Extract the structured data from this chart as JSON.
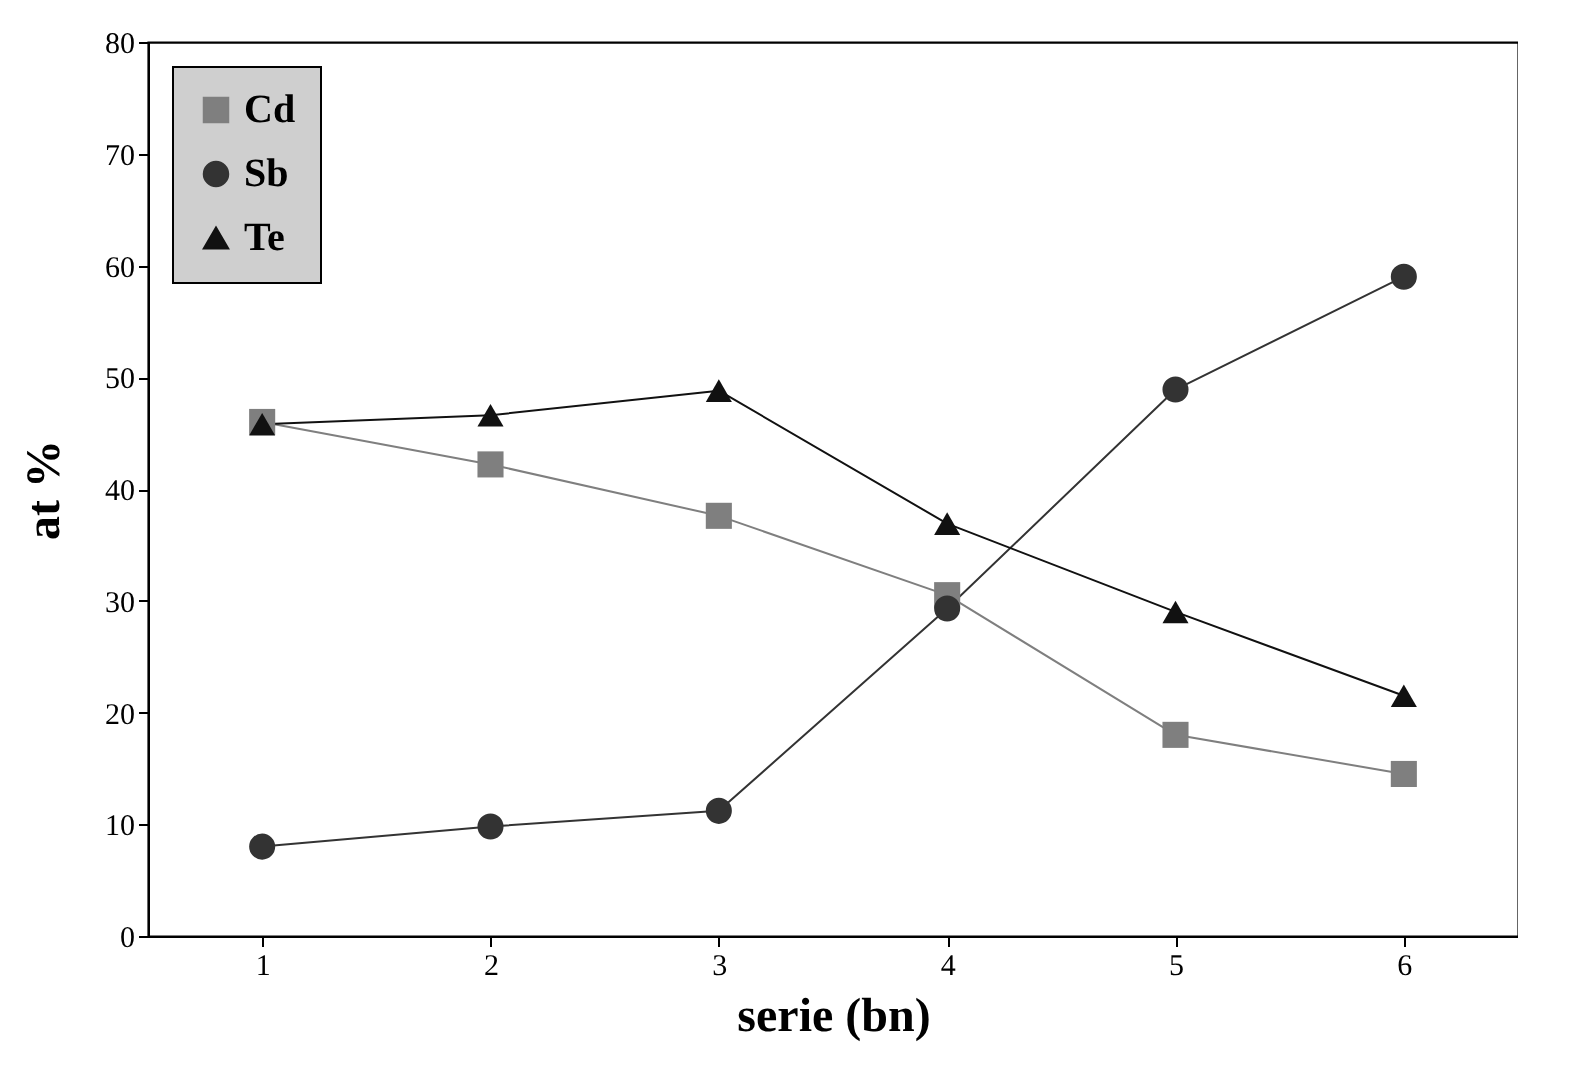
{
  "chart_data": {
    "type": "line",
    "xlabel": "serie (bn)",
    "ylabel": "at %",
    "x": [
      1,
      2,
      3,
      4,
      5,
      6
    ],
    "series": [
      {
        "name": "Cd",
        "color": "#7f7f7f",
        "marker": "square",
        "values": [
          46,
          42.2,
          37.6,
          30.5,
          18,
          14.5
        ]
      },
      {
        "name": "Sb",
        "color": "#333333",
        "marker": "circle",
        "values": [
          8,
          9.8,
          11.2,
          29.3,
          48.9,
          59
        ]
      },
      {
        "name": "Te",
        "color": "#111111",
        "marker": "triangle",
        "values": [
          45.8,
          46.6,
          48.8,
          36.9,
          29,
          21.5
        ]
      }
    ],
    "xlim": [
      0.5,
      6.5
    ],
    "xticks": [
      1,
      2,
      3,
      4,
      5,
      6
    ],
    "ylim": [
      0,
      80
    ],
    "yticks": [
      0,
      10,
      20,
      30,
      40,
      50,
      60,
      70,
      80
    ],
    "grid": false,
    "legend": "top left",
    "line_style": "solid"
  }
}
